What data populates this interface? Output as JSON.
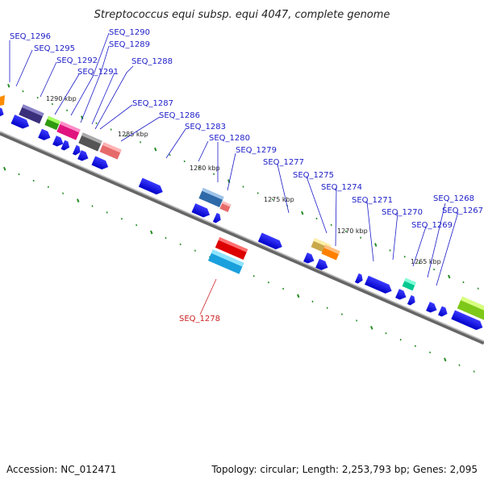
{
  "title": "Streptococcus equi subsp. equi 4047, complete genome",
  "footer": {
    "accession": "Accession: NC_012471",
    "topology": "Topology: circular; Length: 2,253,793 bp; Genes: 2,095"
  },
  "colors": {
    "label_default": "#1c1cc8",
    "label_highlight": "#cc2222",
    "gene_blue": "#1a1ae6",
    "tick": "#228b22",
    "backbone": "#888888"
  },
  "kbp_labels": [
    "1290 kbp",
    "1285 kbp",
    "1280 kbp",
    "1275 kbp",
    "1270 kbp",
    "1265 kbp"
  ],
  "gene_labels": [
    "SEQ_1296",
    "SEQ_1295",
    "SEQ_1292",
    "SEQ_1291",
    "SEQ_1290",
    "SEQ_1289",
    "SEQ_1288",
    "SEQ_1287",
    "SEQ_1286",
    "SEQ_1283",
    "SEQ_1280",
    "SEQ_1279",
    "SEQ_1277",
    "SEQ_1275",
    "SEQ_1274",
    "SEQ_1271",
    "SEQ_1270",
    "SEQ_1269",
    "SEQ_1268",
    "SEQ_1267",
    "SEQ_1278"
  ]
}
